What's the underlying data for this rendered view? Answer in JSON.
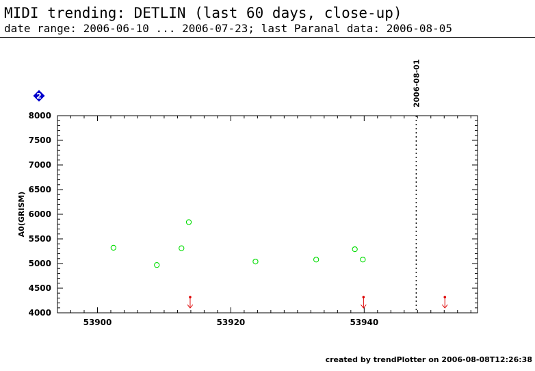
{
  "header": {
    "title": "MIDI trending: DETLIN (last 60 days, close-up)",
    "subtitle": "date range: 2006-06-10 ... 2006-07-23; last Paranal data: 2006-08-05"
  },
  "footer": {
    "text": "created by trendPlotter on 2006-08-08T12:26:38"
  },
  "badge": {
    "label": "2",
    "color": "#0000cc"
  },
  "colors": {
    "points": "#00dd00",
    "arrows": "#dd0000",
    "axes": "#000000"
  },
  "chart_data": {
    "type": "scatter",
    "xlabel": "",
    "ylabel": "A0(GRISM)",
    "xlim": [
      53894,
      53957
    ],
    "ylim": [
      4000,
      8000
    ],
    "xticks": [
      53900,
      53920,
      53940
    ],
    "yticks": [
      4000,
      4500,
      5000,
      5500,
      6000,
      6500,
      7000,
      7500,
      8000
    ],
    "grid": false,
    "points": [
      {
        "x": 53902.4,
        "y": 5320
      },
      {
        "x": 53908.9,
        "y": 4970
      },
      {
        "x": 53912.6,
        "y": 5310
      },
      {
        "x": 53913.7,
        "y": 5840
      },
      {
        "x": 53923.7,
        "y": 5040
      },
      {
        "x": 53932.8,
        "y": 5080
      },
      {
        "x": 53938.6,
        "y": 5290
      },
      {
        "x": 53939.8,
        "y": 5080
      }
    ],
    "out_of_range_markers": [
      {
        "x": 53913.9
      },
      {
        "x": 53939.9
      },
      {
        "x": 53952.1
      }
    ],
    "vertical_markers": [
      {
        "x": 53947.8,
        "label": "2006-08-01"
      }
    ]
  }
}
